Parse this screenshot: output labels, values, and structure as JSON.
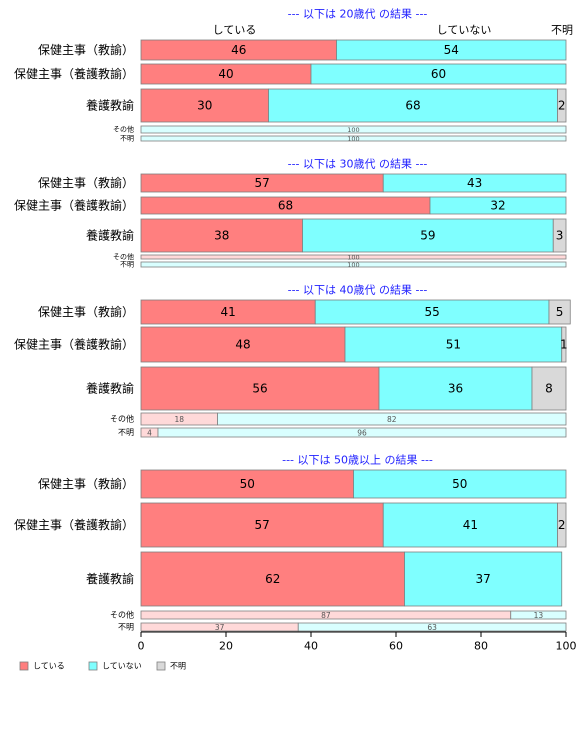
{
  "colors": {
    "doing": "#ff7f7f",
    "not_doing": "#7fffff",
    "unknown": "#d9d9d9",
    "doing_light": "#ffd9d9",
    "not_doing_light": "#d9ffff",
    "title": "#1f1fff",
    "border": "#7f7f7f"
  },
  "chart_data": {
    "type": "bar",
    "orientation": "horizontal",
    "stacked": true,
    "percent": true,
    "header_labels": [
      "している",
      "していない",
      "不明"
    ],
    "legend": [
      {
        "name": "している",
        "color": "#ff7f7f"
      },
      {
        "name": "していない",
        "color": "#7fffff"
      },
      {
        "name": "不明",
        "color": "#d9d9d9"
      }
    ],
    "legend_position": "bottom-left",
    "xlim": [
      0,
      100
    ],
    "x_ticks": [
      "0",
      "20",
      "40",
      "60",
      "80",
      "100"
    ],
    "panels": [
      {
        "title": "--- 以下は 20歳代 の結果 ---",
        "rows": [
          {
            "label": "保健主事（教諭）",
            "values": [
              46,
              54,
              0
            ]
          },
          {
            "label": "保健主事（養護教諭）",
            "values": [
              40,
              60,
              0
            ]
          },
          {
            "label": "養護教諭",
            "values": [
              30,
              68,
              2
            ]
          },
          {
            "label": "その他",
            "values": [
              0,
              100,
              0
            ]
          },
          {
            "label": "不明",
            "values": [
              0,
              100,
              0
            ]
          }
        ]
      },
      {
        "title": "--- 以下は 30歳代 の結果 ---",
        "rows": [
          {
            "label": "保健主事（教諭）",
            "values": [
              57,
              43,
              0
            ]
          },
          {
            "label": "保健主事（養護教諭）",
            "values": [
              68,
              32,
              0
            ]
          },
          {
            "label": "養護教諭",
            "values": [
              38,
              59,
              3
            ]
          },
          {
            "label": "その他",
            "values": [
              100,
              0,
              0
            ]
          },
          {
            "label": "不明",
            "values": [
              0,
              100,
              0
            ]
          }
        ]
      },
      {
        "title": "--- 以下は 40歳代 の結果 ---",
        "rows": [
          {
            "label": "保健主事（教諭）",
            "values": [
              41,
              55,
              5
            ]
          },
          {
            "label": "保健主事（養護教諭）",
            "values": [
              48,
              51,
              1
            ]
          },
          {
            "label": "養護教諭",
            "values": [
              56,
              36,
              8
            ]
          },
          {
            "label": "その他",
            "values": [
              18,
              82,
              0
            ]
          },
          {
            "label": "不明",
            "values": [
              4,
              96,
              0
            ]
          }
        ]
      },
      {
        "title": "--- 以下は 50歳以上 の結果 ---",
        "rows": [
          {
            "label": "保健主事（教諭）",
            "values": [
              50,
              50,
              0
            ]
          },
          {
            "label": "保健主事（養護教諭）",
            "values": [
              57,
              41,
              2
            ]
          },
          {
            "label": "養護教諭",
            "values": [
              62,
              37,
              0
            ]
          },
          {
            "label": "その他",
            "values": [
              87,
              13,
              0
            ]
          },
          {
            "label": "不明",
            "values": [
              37,
              63,
              0
            ]
          }
        ]
      }
    ]
  }
}
